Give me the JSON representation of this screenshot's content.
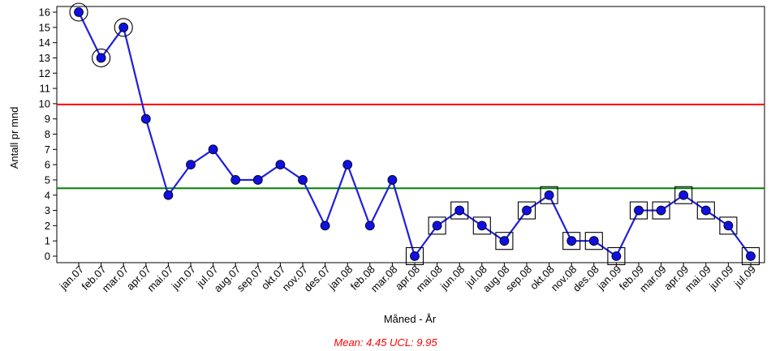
{
  "chart_data": {
    "type": "line",
    "title": "",
    "xlabel": "Måned - År",
    "ylabel": "Antall pr mnd",
    "ylim": [
      0,
      16
    ],
    "yticks": [
      0,
      1,
      2,
      3,
      4,
      5,
      6,
      7,
      8,
      9,
      10,
      11,
      12,
      13,
      14,
      15,
      16
    ],
    "grid": false,
    "categories": [
      "jan.07",
      "feb.07",
      "mar.07",
      "apr.07",
      "mai.07",
      "jun.07",
      "jul.07",
      "aug.07",
      "sep.07",
      "okt.07",
      "nov.07",
      "des.07",
      "jan.08",
      "feb.08",
      "mar.08",
      "apr.08",
      "mai.08",
      "jun.08",
      "jul.08",
      "aug.08",
      "sep.08",
      "okt.08",
      "nov.08",
      "des.08",
      "jan.09",
      "feb.09",
      "mar.09",
      "apr.09",
      "mai.09",
      "jun.09",
      "jul.09"
    ],
    "values": [
      16,
      13,
      15,
      9,
      4,
      6,
      7,
      5,
      5,
      6,
      5,
      2,
      6,
      2,
      5,
      0,
      2,
      3,
      2,
      1,
      3,
      4,
      1,
      1,
      0,
      3,
      3,
      4,
      3,
      2,
      0
    ],
    "mean": 4.45,
    "ucl": 9.95,
    "circled_points": [
      "jan.07",
      "feb.07",
      "mar.07"
    ],
    "boxed_points": [
      "apr.08",
      "mai.08",
      "jun.08",
      "jul.08",
      "aug.08",
      "sep.08",
      "okt.08",
      "nov.08",
      "des.08",
      "jan.09",
      "feb.09",
      "mar.09",
      "apr.09",
      "mai.09",
      "jun.09",
      "jul.09"
    ],
    "colors": {
      "series": "#1f1fdd",
      "marker": "#1010e0",
      "mean_line": "#008000",
      "ucl_line": "#ff0000",
      "footer": "#ff0000"
    },
    "footer": "Mean: 4.45 UCL: 9.95"
  }
}
